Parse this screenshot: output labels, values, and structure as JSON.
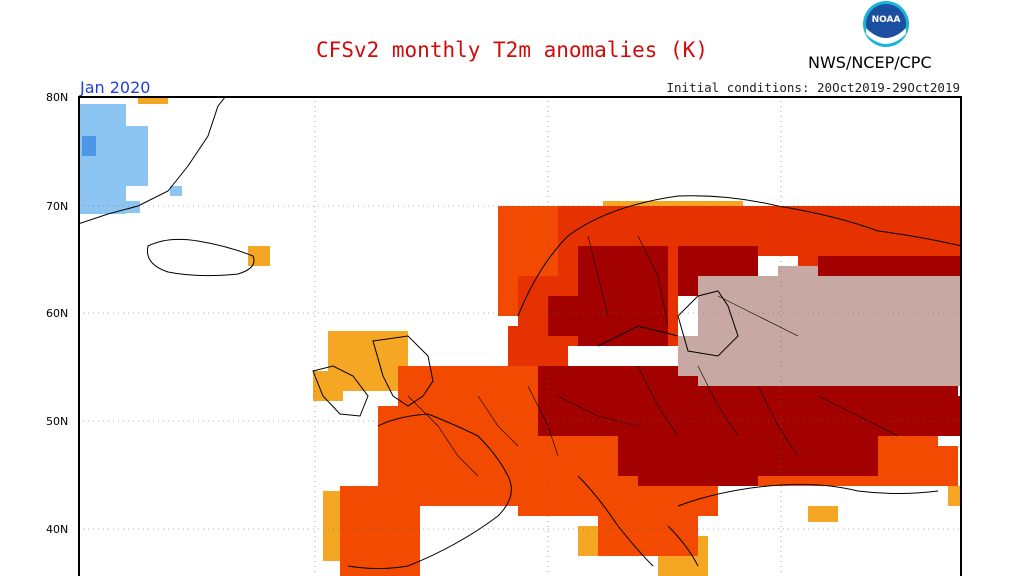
{
  "title": "CFSv2 monthly T2m anomalies (K)",
  "org": "NWS/NCEP/CPC",
  "logo_text": "NOAA",
  "month": "Jan 2020",
  "initial_conditions": "Initial conditions: 20Oct2019-29Oct2019",
  "lat_labels": [
    "80N",
    "70N",
    "60N",
    "50N",
    "40N"
  ],
  "colors": {
    "light_pink": "#c8a8a3",
    "dark_red": "#a30000",
    "red_orange": "#e63200",
    "red": "#f24a00",
    "orange": "#f5a623",
    "light_blue": "#8cc4f2",
    "mid_blue": "#4c97e6"
  }
}
